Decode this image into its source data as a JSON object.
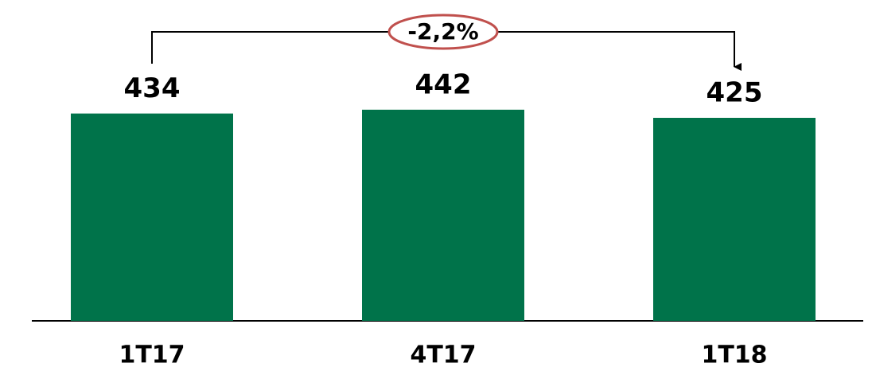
{
  "chart_data": {
    "type": "bar",
    "categories": [
      "1T17",
      "4T17",
      "1T18"
    ],
    "values": [
      434,
      442,
      425
    ],
    "color": "#00734a",
    "annotation": "-2,2%"
  }
}
